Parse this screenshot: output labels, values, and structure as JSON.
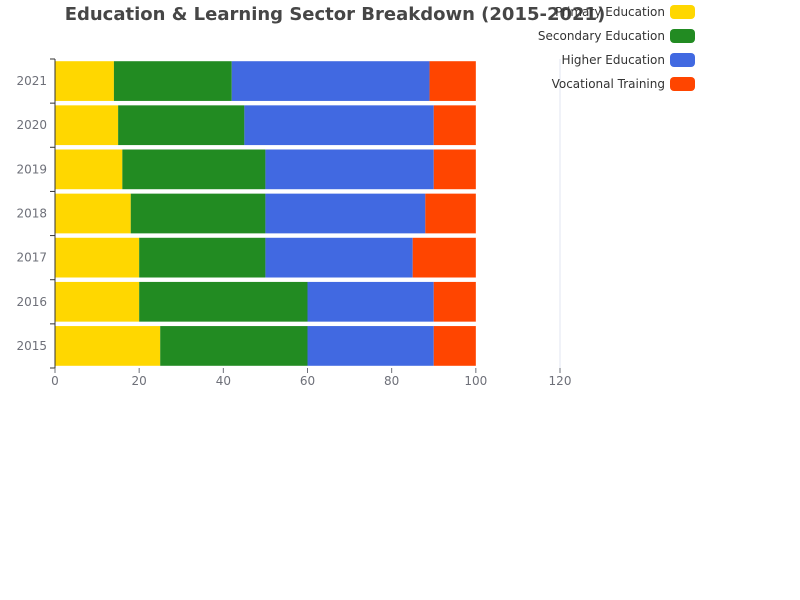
{
  "chart_data": {
    "type": "bar",
    "orientation": "horizontal",
    "stacked": true,
    "title": "Education & Learning Sector Breakdown (2015-2021)",
    "categories": [
      "2015",
      "2016",
      "2017",
      "2018",
      "2019",
      "2020",
      "2021"
    ],
    "series": [
      {
        "name": "Primary Education",
        "color": "#FFD700",
        "values": [
          25,
          20,
          20,
          18,
          16,
          15,
          14
        ]
      },
      {
        "name": "Secondary Education",
        "color": "#228B22",
        "values": [
          35,
          40,
          30,
          32,
          34,
          30,
          28
        ]
      },
      {
        "name": "Higher Education",
        "color": "#4169E1",
        "values": [
          30,
          30,
          35,
          38,
          40,
          45,
          47
        ]
      },
      {
        "name": "Vocational Training",
        "color": "#FF4500",
        "values": [
          10,
          10,
          15,
          12,
          10,
          10,
          11
        ]
      }
    ],
    "xlim": [
      0,
      120
    ],
    "xticks": [
      "0",
      "20",
      "40",
      "60",
      "80",
      "100",
      "120"
    ],
    "xlabel": "",
    "ylabel": "",
    "grid": "vertical line at 120 only",
    "legend_position": "top-right"
  }
}
